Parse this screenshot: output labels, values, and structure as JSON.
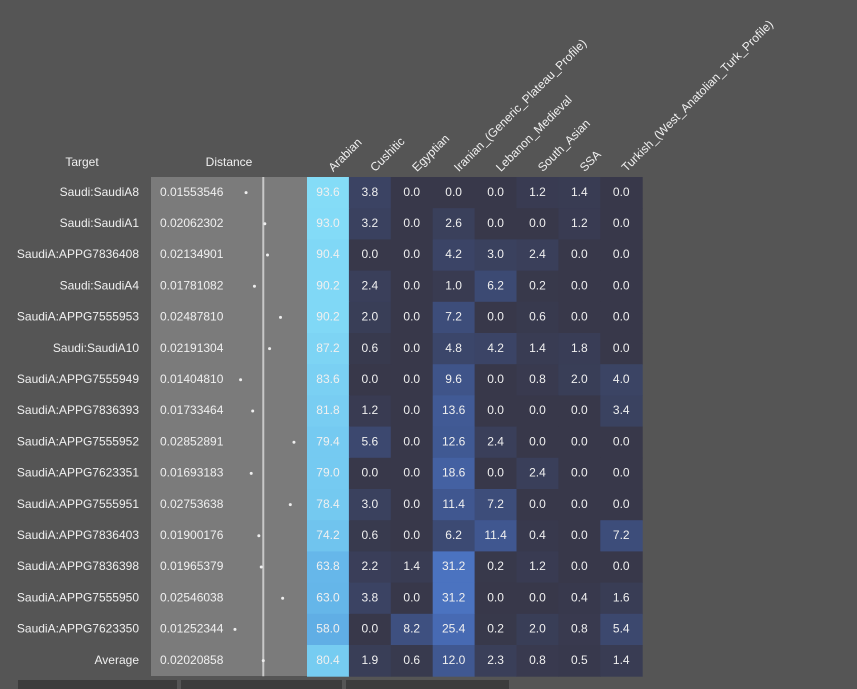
{
  "table": {
    "header": {
      "target": "Target",
      "distance": "Distance",
      "columns": [
        "Arabian",
        "Cushitic",
        "Egyptian",
        "Iranian_(Generic_Plateau_Profile)",
        "Lebanon_Medieval",
        "South_Asian",
        "SSA",
        "Turkish_(West_Anatolian_Turk_Profile)"
      ]
    },
    "rows": [
      {
        "target": "Saudi:SaudiA8",
        "distance": "0.01553546",
        "values": [
          "93.6",
          "3.8",
          "0.0",
          "0.0",
          "0.0",
          "1.2",
          "1.4",
          "0.0"
        ]
      },
      {
        "target": "Saudi:SaudiA1",
        "distance": "0.02062302",
        "values": [
          "93.0",
          "3.2",
          "0.0",
          "2.6",
          "0.0",
          "0.0",
          "1.2",
          "0.0"
        ]
      },
      {
        "target": "SaudiA:APPG7836408",
        "distance": "0.02134901",
        "values": [
          "90.4",
          "0.0",
          "0.0",
          "4.2",
          "3.0",
          "2.4",
          "0.0",
          "0.0"
        ]
      },
      {
        "target": "Saudi:SaudiA4",
        "distance": "0.01781082",
        "values": [
          "90.2",
          "2.4",
          "0.0",
          "1.0",
          "6.2",
          "0.2",
          "0.0",
          "0.0"
        ]
      },
      {
        "target": "SaudiA:APPG7555953",
        "distance": "0.02487810",
        "values": [
          "90.2",
          "2.0",
          "0.0",
          "7.2",
          "0.0",
          "0.6",
          "0.0",
          "0.0"
        ]
      },
      {
        "target": "Saudi:SaudiA10",
        "distance": "0.02191304",
        "values": [
          "87.2",
          "0.6",
          "0.0",
          "4.8",
          "4.2",
          "1.4",
          "1.8",
          "0.0"
        ]
      },
      {
        "target": "SaudiA:APPG7555949",
        "distance": "0.01404810",
        "values": [
          "83.6",
          "0.0",
          "0.0",
          "9.6",
          "0.0",
          "0.8",
          "2.0",
          "4.0"
        ]
      },
      {
        "target": "SaudiA:APPG7836393",
        "distance": "0.01733464",
        "values": [
          "81.8",
          "1.2",
          "0.0",
          "13.6",
          "0.0",
          "0.0",
          "0.0",
          "3.4"
        ]
      },
      {
        "target": "SaudiA:APPG7555952",
        "distance": "0.02852891",
        "values": [
          "79.4",
          "5.6",
          "0.0",
          "12.6",
          "2.4",
          "0.0",
          "0.0",
          "0.0"
        ]
      },
      {
        "target": "SaudiA:APPG7623351",
        "distance": "0.01693183",
        "values": [
          "79.0",
          "0.0",
          "0.0",
          "18.6",
          "0.0",
          "2.4",
          "0.0",
          "0.0"
        ]
      },
      {
        "target": "SaudiA:APPG7555951",
        "distance": "0.02753638",
        "values": [
          "78.4",
          "3.0",
          "0.0",
          "11.4",
          "7.2",
          "0.0",
          "0.0",
          "0.0"
        ]
      },
      {
        "target": "SaudiA:APPG7836403",
        "distance": "0.01900176",
        "values": [
          "74.2",
          "0.6",
          "0.0",
          "6.2",
          "11.4",
          "0.4",
          "0.0",
          "7.2"
        ]
      },
      {
        "target": "SaudiA:APPG7836398",
        "distance": "0.01965379",
        "values": [
          "63.8",
          "2.2",
          "1.4",
          "31.2",
          "0.2",
          "1.2",
          "0.0",
          "0.0"
        ]
      },
      {
        "target": "SaudiA:APPG7555950",
        "distance": "0.02546038",
        "values": [
          "63.0",
          "3.8",
          "0.0",
          "31.2",
          "0.0",
          "0.0",
          "0.4",
          "1.6"
        ]
      },
      {
        "target": "SaudiA:APPG7623350",
        "distance": "0.01252344",
        "values": [
          "58.0",
          "0.0",
          "8.2",
          "25.4",
          "0.2",
          "2.0",
          "0.8",
          "5.4"
        ]
      },
      {
        "target": "Average",
        "distance": "0.02020858",
        "values": [
          "80.4",
          "1.9",
          "0.6",
          "12.0",
          "2.3",
          "0.8",
          "0.5",
          "1.4"
        ]
      }
    ]
  }
}
